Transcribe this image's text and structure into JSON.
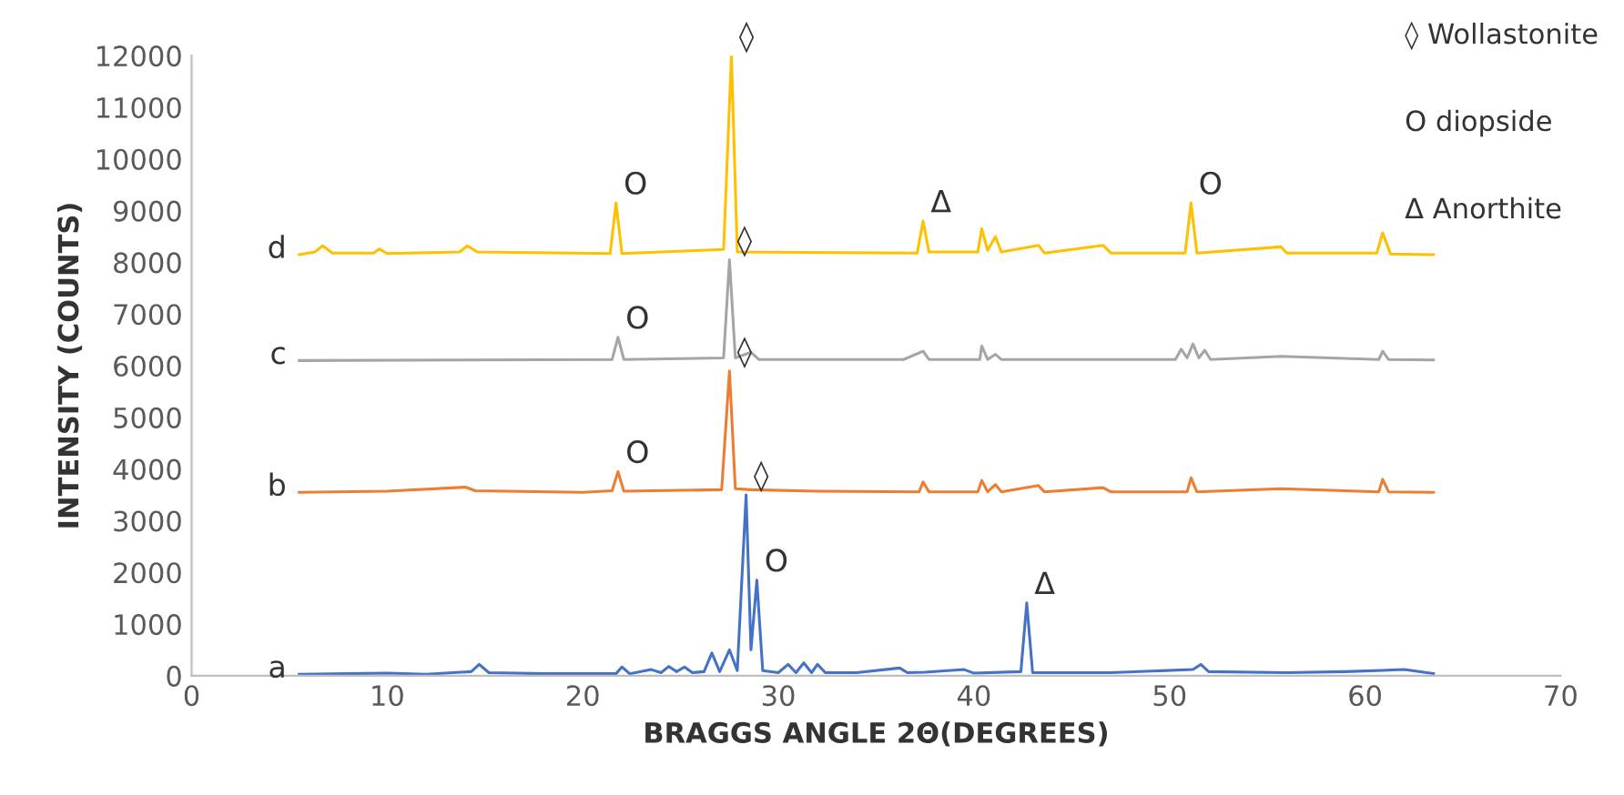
{
  "chart_data": {
    "type": "line",
    "xlabel": "BRAGGS ANGLE 2Θ(DEGREES)",
    "ylabel": "INTENSITY (COUNTS)",
    "xlim": [
      0,
      70
    ],
    "xticks": [
      0,
      10,
      20,
      30,
      40,
      50,
      60,
      70
    ],
    "ylim": [
      0,
      12000
    ],
    "yticks": [
      0,
      1000,
      2000,
      3000,
      4000,
      5000,
      6000,
      7000,
      8000,
      9000,
      10000,
      11000,
      12000
    ],
    "grid": false,
    "legend": false,
    "marker": "none",
    "line_style": "solid",
    "series": [
      {
        "name": "a",
        "color": "#4472c4",
        "x": [
          5.5,
          8,
          10,
          12,
          14.3,
          14.7,
          15.2,
          18,
          21.7,
          22,
          22.4,
          23.5,
          24,
          24.4,
          24.8,
          25.2,
          25.6,
          26.2,
          26.6,
          27,
          27.5,
          27.9,
          28.35,
          28.6,
          28.9,
          29.2,
          30,
          30.5,
          30.9,
          31.3,
          31.7,
          32,
          32.4,
          34,
          36.2,
          36.6,
          37.5,
          39.5,
          40,
          42.4,
          42.7,
          43.0,
          47,
          51.2,
          51.6,
          52,
          56,
          59,
          62,
          63.5
        ],
        "values": [
          30,
          40,
          50,
          30,
          80,
          220,
          60,
          40,
          40,
          170,
          40,
          120,
          60,
          180,
          80,
          170,
          60,
          80,
          440,
          80,
          500,
          100,
          3500,
          500,
          1850,
          100,
          60,
          220,
          60,
          250,
          60,
          220,
          60,
          60,
          150,
          60,
          70,
          120,
          50,
          80,
          1410,
          60,
          60,
          120,
          220,
          80,
          60,
          80,
          120,
          40
        ]
      },
      {
        "name": "b",
        "color": "#ed7d31",
        "x": [
          5.5,
          10,
          14,
          14.5,
          20,
          21.5,
          21.8,
          22.1,
          27.1,
          27.5,
          27.8,
          28.6,
          32,
          37.2,
          37.4,
          37.7,
          40.2,
          40.4,
          40.7,
          41.1,
          41.4,
          43.3,
          43.6,
          46.6,
          47,
          50.9,
          51.1,
          51.4,
          55.7,
          60.7,
          60.9,
          61.2,
          63.5
        ],
        "values": [
          3550,
          3570,
          3650,
          3580,
          3550,
          3580,
          3950,
          3570,
          3600,
          5900,
          3620,
          3600,
          3570,
          3560,
          3750,
          3560,
          3560,
          3780,
          3560,
          3700,
          3560,
          3680,
          3560,
          3640,
          3560,
          3560,
          3830,
          3560,
          3620,
          3560,
          3800,
          3560,
          3550
        ]
      },
      {
        "name": "c",
        "color": "#a5a5a5",
        "x": [
          5.5,
          21.5,
          21.8,
          22.1,
          27.2,
          27.5,
          27.8,
          28.6,
          29,
          36.4,
          37.4,
          37.7,
          40.3,
          40.4,
          40.7,
          41.1,
          41.4,
          50.3,
          50.6,
          50.9,
          51.2,
          51.5,
          51.8,
          52.1,
          55.7,
          60.7,
          60.9,
          61.2,
          63.5
        ],
        "values": [
          6100,
          6120,
          6550,
          6120,
          6150,
          8050,
          6150,
          6260,
          6120,
          6120,
          6280,
          6120,
          6120,
          6380,
          6120,
          6220,
          6120,
          6120,
          6320,
          6150,
          6420,
          6150,
          6300,
          6120,
          6180,
          6120,
          6280,
          6120,
          6110
        ]
      },
      {
        "name": "d",
        "color": "#ffc000",
        "x": [
          5.5,
          6.3,
          6.7,
          7.2,
          9.3,
          9.6,
          10,
          13.7,
          14.1,
          14.6,
          21.4,
          21.7,
          22,
          27.2,
          27.6,
          27.9,
          37.1,
          37.4,
          37.7,
          40.2,
          40.4,
          40.7,
          41.1,
          41.4,
          43.3,
          43.6,
          46.6,
          47,
          50.8,
          51.1,
          51.4,
          55.7,
          56,
          60.6,
          60.9,
          61.3,
          63.5
        ],
        "values": [
          8150,
          8200,
          8320,
          8180,
          8180,
          8260,
          8170,
          8200,
          8320,
          8200,
          8170,
          9150,
          8170,
          8250,
          12000,
          8200,
          8180,
          8800,
          8200,
          8200,
          8650,
          8230,
          8500,
          8200,
          8330,
          8180,
          8330,
          8180,
          8180,
          9150,
          8180,
          8300,
          8180,
          8180,
          8570,
          8160,
          8150
        ]
      }
    ],
    "annotations": [
      {
        "text": "◊",
        "x": 27.6,
        "y": 12000
      },
      {
        "text": "O",
        "x": 21.7,
        "y": 9150
      },
      {
        "text": "Δ",
        "x": 37.4,
        "y": 8800
      },
      {
        "text": "O",
        "x": 51.1,
        "y": 9150
      },
      {
        "text": "◊",
        "x": 27.5,
        "y": 8050
      },
      {
        "text": "O",
        "x": 21.8,
        "y": 6550
      },
      {
        "text": "◊",
        "x": 27.5,
        "y": 5900
      },
      {
        "text": "O",
        "x": 21.8,
        "y": 3950
      },
      {
        "text": "◊",
        "x": 28.35,
        "y": 3500
      },
      {
        "text": "O",
        "x": 28.9,
        "y": 1850
      },
      {
        "text": "Δ",
        "x": 42.7,
        "y": 1410
      },
      "◊ Wollastonite",
      "O diopside",
      "Δ Anorthite"
    ]
  }
}
